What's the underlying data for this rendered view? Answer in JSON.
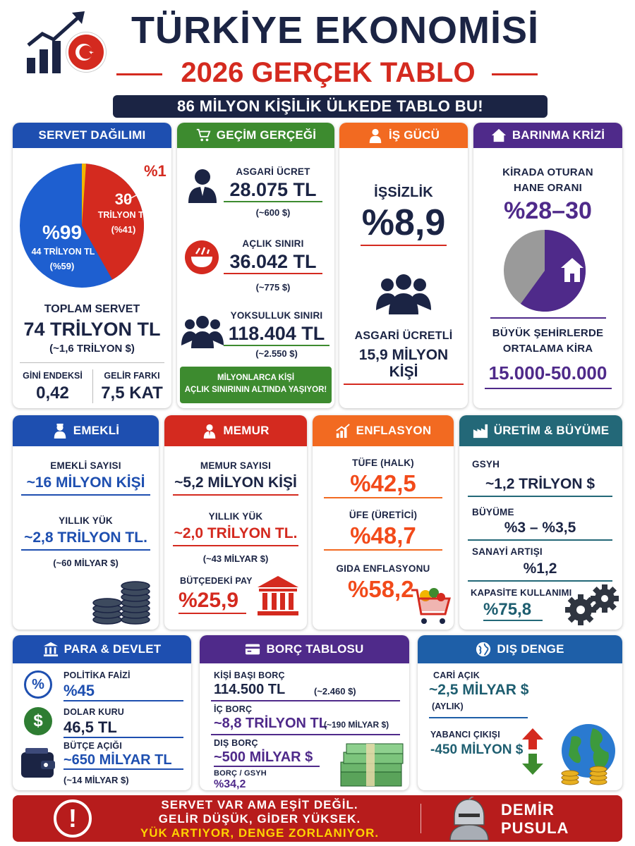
{
  "header": {
    "title": "TÜRKİYE EKONOMİSİ",
    "subtitle": "2026 GERÇEK TABLO",
    "tagline": "86 MİLYON KİŞİLİK ÜLKEDE TABLO BU!"
  },
  "servet": {
    "title": "SERVET DAĞILIMI",
    "top_pct": "%1",
    "top_value": "30",
    "top_unit": "TRİLYON TL",
    "top_share": "(%41)",
    "bottom_pct": "%99",
    "bottom_unit": "44 TRİLYON TL",
    "bottom_share": "(%59)",
    "total_label": "TOPLAM SERVET",
    "total_value": "74 TRİLYON TL",
    "total_usd": "(~1,6 TRİLYON $)",
    "gini_label": "GİNİ ENDEKSİ",
    "gini_value": "0,42",
    "gap_label": "GELİR FARKI",
    "gap_value": "7,5 KAT",
    "share_top": 41
  },
  "gecim": {
    "title": "GEÇİM GERÇEĞİ",
    "min_wage_label": "ASGARİ ÜCRET",
    "min_wage_value": "28.075 TL",
    "min_wage_usd": "(~600 $)",
    "hunger_label": "AÇLIK SINIRI",
    "hunger_value": "36.042 TL",
    "hunger_usd": "(~775 $)",
    "poverty_label": "YOKSULLUK SINIRI",
    "poverty_value": "118.404 TL",
    "poverty_usd": "(~2.550 $)",
    "footer_line1": "MİLYONLARCA KİŞİ",
    "footer_line2": "AÇLIK SINIRININ ALTINDA YAŞIYOR!"
  },
  "isgucu": {
    "title": "İŞ GÜCÜ",
    "unemp_label": "İŞSİZLİK",
    "unemp_value": "%8,9",
    "minwage_label": "ASGARİ ÜCRETLİ",
    "minwage_value": "15,9 MİLYON KİŞİ"
  },
  "barinma": {
    "title": "BARINMA KRİZİ",
    "renter_line1": "KİRADA OTURAN",
    "renter_line2": "HANE ORANI",
    "renter_value": "%28–30",
    "rent_line1": "BÜYÜK ŞEHİRLERDE",
    "rent_line2": "ORTALAMA KİRA",
    "rent_value": "15.000-50.000",
    "renter_share": 30
  },
  "emekli": {
    "title": "EMEKLİ",
    "count_label": "EMEKLİ SAYISI",
    "count_value": "~16 MİLYON KİŞİ",
    "burden_label": "YILLIK YÜK",
    "burden_value": "~2,8 TRİLYON TL.",
    "burden_usd": "(~60 MİLYAR $)"
  },
  "memur": {
    "title": "MEMUR",
    "count_label": "MEMUR SAYISI",
    "count_value": "~5,2 MİLYON KİŞİ",
    "burden_label": "YILLIK YÜK",
    "burden_value": "~2,0 TRİLYON TL.",
    "burden_usd": "(~43 MİLYAR $)",
    "budget_label": "BÜTÇEDEKİ PAY",
    "budget_value": "%25,9"
  },
  "enflasyon": {
    "title": "ENFLASYON",
    "cpi_label": "TÜFE (HALK)",
    "cpi_value": "%42,5",
    "ppi_label": "ÜFE (ÜRETİCİ)",
    "ppi_value": "%48,7",
    "food_label": "GIDA ENFLASYONU",
    "food_value": "%58,2"
  },
  "uretim": {
    "title": "ÜRETİM & BÜYÜME",
    "gdp_label": "GSYH",
    "gdp_value": "~1,2 TRİLYON $",
    "growth_label": "BÜYÜME",
    "growth_value": "%3 – %3,5",
    "industry_label": "SANAYİ ARTIŞI",
    "industry_value": "%1,2",
    "capacity_label": "KAPASİTE KULLANIMI",
    "capacity_value": "%75,8"
  },
  "para": {
    "title": "PARA & DEVLET",
    "rate_label": "POLİTİKA FAİZİ",
    "rate_value": "%45",
    "usd_label": "DOLAR KURU",
    "usd_value": "46,5 TL",
    "deficit_label": "BÜTÇE AÇIĞI",
    "deficit_value": "~650 MİLYAR TL",
    "deficit_usd": "(~14 MİLYAR $)",
    "pct_symbol": "%",
    "dollar_symbol": "$"
  },
  "borc": {
    "title": "BORÇ TABLOSU",
    "per_capita_label": "KİŞİ BAŞI BORÇ",
    "per_capita_value": "114.500 TL",
    "per_capita_usd": "(~2.460 $)",
    "internal_label": "İÇ BORÇ",
    "internal_value": "~8,8 TRİLYON TL",
    "internal_usd": "(~190 MİLYAR $)",
    "external_label": "DIŞ BORÇ",
    "external_value": "~500 MİLYAR $",
    "ratio_label": "BORÇ / GSYH",
    "ratio_value": "%34,2"
  },
  "dis": {
    "title": "DIŞ DENGE",
    "current_label": "CARİ AÇIK",
    "current_value": "~2,5 MİLYAR $",
    "current_period": "(AYLIK)",
    "outflow_label": "YABANCI ÇIKIŞI",
    "outflow_value": "-450 MİLYON $"
  },
  "footer": {
    "line1": "SERVET VAR AMA EŞİT DEĞİL.",
    "line2": "GELİR DÜŞÜK, GİDER YÜKSEK.",
    "line3": "YÜK ARTIYOR, DENGE ZORLANIYOR.",
    "brand1": "DEMİR",
    "brand2": "PUSULA",
    "alert": "!"
  },
  "colors": {
    "navy": "#1b2444",
    "red": "#d42a1f",
    "blue": "#1e4fb0",
    "green": "#3d8b2f",
    "orange": "#f26a21",
    "purple": "#4f2a8a",
    "teal": "#236878",
    "lime": "#9acd32"
  },
  "icons": [
    "chart-up-icon",
    "turkish-flag-icon",
    "cart-icon",
    "worker-icon",
    "bowl-icon",
    "people-icon",
    "house-icon",
    "elder-icon",
    "officer-icon",
    "growth-icon",
    "factory-icon",
    "bank-icon",
    "card-icon",
    "globe-icon",
    "percent-icon",
    "dollar-icon",
    "wallet-icon",
    "coins-icon",
    "building-icon",
    "grocery-cart-icon",
    "gears-icon",
    "cash-icon",
    "arrows-icon",
    "alert-icon",
    "knight-icon"
  ]
}
